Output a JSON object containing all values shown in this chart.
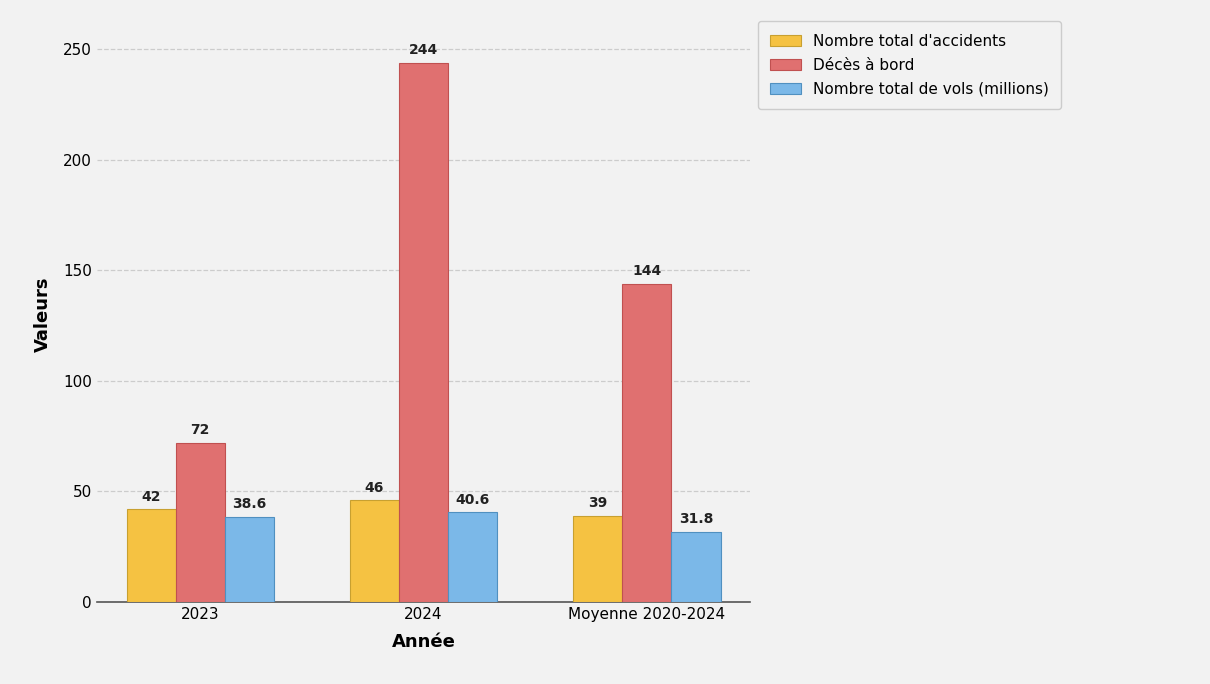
{
  "categories": [
    "2023",
    "2024",
    "Moyenne 2020-2024"
  ],
  "series": [
    {
      "label": "Nombre total d'accidents",
      "color": "#F5C242",
      "edgecolor": "#C8A030",
      "values": [
        42,
        46,
        39
      ]
    },
    {
      "label": "Décès à bord",
      "color": "#E07070",
      "edgecolor": "#C05050",
      "values": [
        72,
        244,
        144
      ]
    },
    {
      "label": "Nombre total de vols (millions)",
      "color": "#7BB8E8",
      "edgecolor": "#5090C0",
      "values": [
        38.6,
        40.6,
        31.8
      ]
    }
  ],
  "ylabel": "Valeurs",
  "xlabel": "Année",
  "ylim": [
    0,
    260
  ],
  "yticks": [
    0,
    50,
    100,
    150,
    200,
    250
  ],
  "background_color": "#F2F2F2",
  "grid_color": "#CCCCCC",
  "bar_width": 0.22,
  "label_fontsize": 10,
  "axis_label_fontsize": 13,
  "tick_fontsize": 11,
  "legend_fontsize": 11
}
